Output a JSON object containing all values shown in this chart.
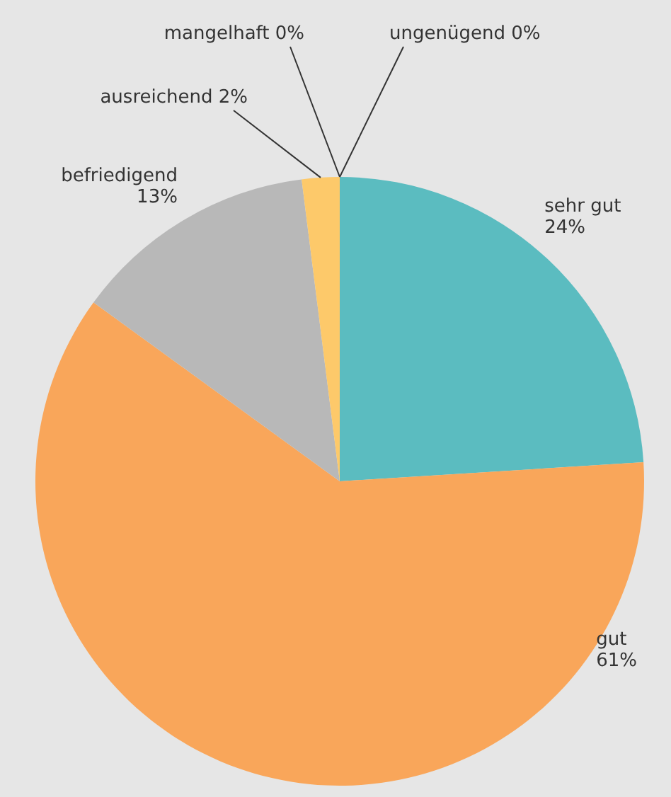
{
  "chart_data": {
    "type": "pie",
    "categories": [
      "sehr gut",
      "gut",
      "befriedigend",
      "ausreichend",
      "mangelhaft",
      "ungenügend"
    ],
    "values": [
      24,
      61,
      13,
      2,
      0,
      0
    ],
    "value_labels": [
      "24%",
      "61%",
      "13%",
      "2%",
      "0%",
      "0%"
    ],
    "colors": [
      "#5bbcc0",
      "#f9a65a",
      "#b8b8b8",
      "#fdc96a",
      "#e0a030",
      "#d08020"
    ],
    "legend": false
  }
}
